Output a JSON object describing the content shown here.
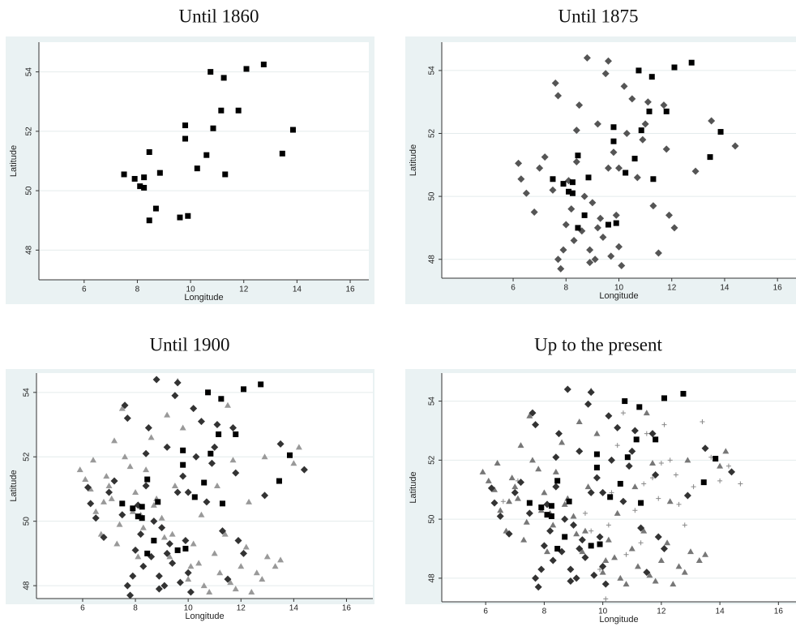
{
  "chart_data": [
    {
      "type": "scatter",
      "title": "Until 1860",
      "x_label": "Longitude",
      "y_label": "Latitude",
      "xlim": [
        4.3,
        16.7
      ],
      "ylim": [
        47.0,
        55.0
      ],
      "xticks": [
        6,
        8,
        10,
        12,
        14,
        16
      ],
      "yticks": [
        48,
        50,
        52,
        54
      ],
      "grid": true,
      "series": [
        {
          "color": "#000000",
          "marker": "square",
          "x": [
            7.5,
            7.9,
            8.25,
            8.1,
            8.25,
            8.45,
            8.85,
            8.7,
            8.45,
            9.6,
            9.9,
            9.8,
            9.8,
            10.25,
            10.6,
            10.85,
            10.75,
            11.25,
            11.15,
            11.3,
            12.1,
            12.75,
            11.8,
            13.85,
            13.45
          ],
          "values": [
            50.55,
            50.4,
            50.45,
            50.15,
            50.1,
            51.3,
            50.6,
            49.4,
            49.0,
            49.1,
            49.15,
            52.2,
            51.75,
            50.75,
            51.2,
            52.1,
            54.0,
            53.8,
            52.7,
            50.55,
            54.1,
            54.25,
            52.7,
            52.05,
            51.25
          ]
        }
      ]
    },
    {
      "type": "scatter",
      "title": "Until 1875",
      "x_label": "Longitude",
      "y_label": "Latitude",
      "xlim": [
        3.3,
        16.7
      ],
      "ylim": [
        47.4,
        54.9
      ],
      "xticks": [
        6,
        8,
        10,
        12,
        14,
        16
      ],
      "yticks": [
        48,
        50,
        52,
        54
      ],
      "grid": true,
      "series": [
        {
          "color": "#555555",
          "marker": "diamond",
          "x": [
            6.2,
            6.3,
            6.5,
            6.8,
            7.0,
            7.2,
            7.5,
            7.6,
            7.7,
            7.8,
            7.9,
            8.0,
            8.1,
            8.2,
            8.3,
            8.4,
            8.5,
            8.6,
            8.7,
            8.8,
            8.9,
            9.0,
            9.1,
            9.2,
            9.3,
            9.4,
            9.5,
            9.6,
            9.7,
            9.8,
            9.9,
            10.0,
            10.1,
            10.3,
            10.5,
            10.7,
            10.9,
            11.1,
            11.3,
            11.5,
            11.7,
            11.9,
            12.1,
            12.9,
            13.5,
            14.4,
            8.9,
            9.6,
            10.2,
            7.7,
            11.0,
            11.8,
            9.2,
            8.4,
            10.0
          ],
          "values": [
            51.05,
            50.55,
            50.1,
            49.5,
            50.9,
            51.25,
            50.2,
            53.6,
            48.0,
            47.7,
            48.3,
            49.1,
            50.5,
            49.6,
            48.6,
            51.1,
            52.9,
            48.9,
            50.0,
            54.4,
            48.3,
            49.8,
            48.0,
            52.3,
            49.3,
            48.7,
            53.9,
            50.9,
            48.1,
            51.4,
            49.4,
            48.4,
            47.8,
            52.0,
            53.1,
            50.6,
            51.8,
            53.0,
            49.7,
            48.2,
            52.9,
            49.4,
            49.0,
            50.8,
            52.4,
            51.6,
            47.9,
            54.3,
            53.5,
            53.2,
            52.3,
            51.5,
            49.0,
            52.1,
            50.9
          ]
        },
        {
          "color": "#000000",
          "marker": "square",
          "x": [
            7.5,
            7.9,
            8.25,
            8.1,
            8.25,
            8.45,
            8.85,
            8.7,
            8.45,
            9.6,
            9.9,
            9.8,
            9.8,
            10.25,
            10.6,
            10.85,
            10.75,
            11.25,
            11.15,
            11.3,
            12.1,
            12.75,
            11.8,
            13.85,
            13.45
          ],
          "values": [
            50.55,
            50.4,
            50.45,
            50.15,
            50.1,
            51.3,
            50.6,
            49.4,
            49.0,
            49.1,
            49.15,
            52.2,
            51.75,
            50.75,
            51.2,
            52.1,
            54.0,
            53.8,
            52.7,
            50.55,
            54.1,
            54.25,
            52.7,
            52.05,
            51.25
          ]
        }
      ]
    },
    {
      "type": "scatter",
      "title": "Until 1900",
      "x_label": "Longitude",
      "y_label": "Latitude",
      "xlim": [
        4.25,
        17.0
      ],
      "ylim": [
        47.6,
        54.6
      ],
      "xticks": [
        6,
        8,
        10,
        12,
        14,
        16
      ],
      "yticks": [
        48,
        50,
        52,
        54
      ],
      "grid": true,
      "series": [
        {
          "color": "#999999",
          "marker": "triangle",
          "x": [
            5.9,
            6.1,
            6.3,
            6.5,
            6.7,
            6.9,
            7.1,
            7.3,
            7.5,
            7.6,
            7.8,
            8.0,
            8.2,
            8.4,
            8.6,
            8.8,
            9.0,
            9.2,
            9.4,
            9.6,
            9.8,
            10.0,
            10.2,
            10.4,
            10.6,
            10.8,
            11.0,
            11.2,
            11.4,
            11.6,
            11.8,
            12.0,
            12.2,
            12.4,
            12.6,
            12.8,
            13.0,
            13.3,
            13.5,
            14.0,
            6.4,
            6.8,
            7.2,
            7.4,
            7.9,
            8.3,
            8.7,
            9.1,
            9.5,
            9.3,
            10.5,
            11.1,
            11.7,
            12.3,
            12.9,
            10.1,
            8.1,
            7.0,
            14.2,
            11.5
          ],
          "values": [
            51.6,
            51.3,
            51.0,
            50.3,
            49.6,
            51.4,
            50.7,
            49.3,
            53.5,
            52.0,
            51.7,
            50.9,
            50.2,
            51.6,
            52.6,
            50.7,
            50.1,
            53.3,
            49.6,
            54.35,
            52.9,
            48.2,
            49.3,
            48.7,
            48.0,
            47.8,
            49.0,
            48.4,
            49.6,
            48.1,
            47.9,
            48.6,
            49.2,
            47.8,
            48.4,
            48.2,
            48.9,
            48.6,
            48.8,
            51.8,
            51.9,
            50.6,
            52.5,
            49.9,
            50.3,
            49.8,
            50.5,
            49.5,
            51.1,
            48.9,
            50.2,
            51.1,
            51.9,
            50.6,
            52.0,
            48.6,
            48.9,
            51.1,
            52.3,
            53.6
          ]
        },
        {
          "color": "#333333",
          "marker": "diamond",
          "x": [
            6.2,
            6.3,
            6.5,
            6.8,
            7.0,
            7.2,
            7.5,
            7.6,
            7.7,
            7.8,
            7.9,
            8.0,
            8.1,
            8.2,
            8.3,
            8.4,
            8.5,
            8.6,
            8.7,
            8.8,
            8.9,
            9.0,
            9.1,
            9.2,
            9.3,
            9.4,
            9.5,
            9.6,
            9.7,
            9.8,
            9.9,
            10.0,
            10.1,
            10.3,
            10.5,
            10.7,
            10.9,
            11.1,
            11.3,
            11.5,
            11.7,
            11.9,
            12.1,
            12.9,
            13.5,
            14.4,
            8.9,
            9.6,
            10.2,
            7.7,
            11.0,
            11.8,
            9.2,
            8.4,
            10.0
          ],
          "values": [
            51.05,
            50.55,
            50.1,
            49.5,
            50.9,
            51.25,
            50.2,
            53.6,
            48.0,
            47.7,
            48.3,
            49.1,
            50.5,
            49.6,
            48.6,
            51.1,
            52.9,
            48.9,
            50.0,
            54.4,
            48.3,
            49.8,
            48.0,
            52.3,
            49.3,
            48.7,
            53.9,
            50.9,
            48.1,
            51.4,
            49.4,
            48.4,
            47.8,
            52.0,
            53.1,
            50.6,
            51.8,
            53.0,
            49.7,
            48.2,
            52.9,
            49.4,
            49.0,
            50.8,
            52.4,
            51.6,
            47.9,
            54.3,
            53.5,
            53.2,
            52.3,
            51.5,
            49.0,
            52.1,
            50.9
          ]
        },
        {
          "color": "#000000",
          "marker": "square",
          "x": [
            7.5,
            7.9,
            8.25,
            8.1,
            8.25,
            8.45,
            8.85,
            8.7,
            8.45,
            9.6,
            9.9,
            9.8,
            9.8,
            10.25,
            10.6,
            10.85,
            10.75,
            11.25,
            11.15,
            11.3,
            12.1,
            12.75,
            11.8,
            13.85,
            13.45
          ],
          "values": [
            50.55,
            50.4,
            50.45,
            50.15,
            50.1,
            51.3,
            50.6,
            49.4,
            49.0,
            49.1,
            49.15,
            52.2,
            51.75,
            50.75,
            51.2,
            52.1,
            54.0,
            53.8,
            52.7,
            50.55,
            54.1,
            54.25,
            52.7,
            52.05,
            51.25
          ]
        }
      ]
    },
    {
      "type": "scatter",
      "title": "Up to the present",
      "x_label": "Longitude",
      "y_label": "Latitude",
      "xlim": [
        4.5,
        16.6
      ],
      "ylim": [
        47.2,
        54.95
      ],
      "xticks": [
        6,
        8,
        10,
        12,
        14,
        16
      ],
      "yticks": [
        48,
        50,
        52,
        54
      ],
      "grid": true,
      "series": [
        {
          "color": "#888888",
          "marker": "plus",
          "x": [
            6.6,
            7.1,
            9.6,
            9.9,
            10.1,
            10.3,
            10.5,
            10.7,
            10.9,
            11.1,
            11.3,
            11.5,
            11.7,
            11.9,
            12.1,
            12.3,
            12.5,
            12.8,
            13.1,
            13.4,
            13.7,
            14.0,
            14.3,
            14.7,
            10.2,
            10.8,
            11.4,
            12.0,
            9.4,
            12.6
          ],
          "values": [
            50.6,
            51.3,
            49.6,
            48.3,
            47.3,
            50.9,
            52.5,
            53.6,
            51.8,
            50.3,
            49.2,
            52.9,
            51.4,
            50.7,
            53.2,
            52.0,
            51.5,
            49.8,
            51.1,
            53.3,
            52.1,
            51.3,
            51.8,
            51.2,
            49.8,
            48.8,
            51.2,
            51.9,
            50.2,
            50.5
          ]
        },
        {
          "color": "#777777",
          "marker": "triangle",
          "x": [
            5.9,
            6.1,
            6.3,
            6.5,
            6.7,
            6.9,
            7.1,
            7.3,
            7.5,
            7.6,
            7.8,
            8.0,
            8.2,
            8.4,
            8.6,
            8.8,
            9.0,
            9.2,
            9.4,
            9.6,
            9.8,
            10.0,
            10.2,
            10.4,
            10.6,
            10.8,
            11.0,
            11.2,
            11.4,
            11.6,
            11.8,
            12.0,
            12.2,
            12.4,
            12.6,
            12.8,
            13.0,
            13.3,
            13.5,
            14.0,
            6.4,
            6.8,
            7.2,
            7.4,
            7.9,
            8.3,
            8.7,
            9.1,
            9.5,
            9.3,
            10.5,
            11.1,
            11.7,
            12.3,
            12.9,
            10.1,
            8.1,
            7.0,
            14.2,
            11.5
          ],
          "values": [
            51.6,
            51.3,
            51.0,
            50.3,
            49.6,
            51.4,
            50.7,
            49.3,
            53.5,
            52.0,
            51.7,
            50.9,
            50.2,
            51.6,
            52.6,
            50.7,
            50.1,
            53.3,
            49.6,
            54.35,
            52.9,
            48.2,
            49.3,
            48.7,
            48.0,
            47.8,
            49.0,
            48.4,
            49.6,
            48.1,
            47.9,
            48.6,
            49.2,
            47.8,
            48.4,
            48.2,
            48.9,
            48.6,
            48.8,
            51.8,
            51.9,
            50.6,
            52.5,
            49.9,
            50.3,
            49.8,
            50.5,
            49.5,
            51.1,
            48.9,
            50.2,
            51.1,
            51.9,
            50.6,
            52.0,
            48.6,
            48.9,
            51.1,
            52.3,
            53.6
          ]
        },
        {
          "color": "#333333",
          "marker": "diamond",
          "x": [
            6.2,
            6.3,
            6.5,
            6.8,
            7.0,
            7.2,
            7.5,
            7.6,
            7.7,
            7.8,
            7.9,
            8.0,
            8.1,
            8.2,
            8.3,
            8.4,
            8.5,
            8.6,
            8.7,
            8.8,
            8.9,
            9.0,
            9.1,
            9.2,
            9.3,
            9.4,
            9.5,
            9.6,
            9.7,
            9.8,
            9.9,
            10.0,
            10.1,
            10.3,
            10.5,
            10.7,
            10.9,
            11.1,
            11.3,
            11.5,
            11.7,
            11.9,
            12.1,
            12.9,
            13.5,
            14.4,
            8.9,
            9.6,
            10.2,
            7.7,
            11.0,
            11.8,
            9.2,
            8.4,
            10.0
          ],
          "values": [
            51.05,
            50.55,
            50.1,
            49.5,
            50.9,
            51.25,
            50.2,
            53.6,
            48.0,
            47.7,
            48.3,
            49.1,
            50.5,
            49.6,
            48.6,
            51.1,
            52.9,
            48.9,
            50.0,
            54.4,
            48.3,
            49.8,
            48.0,
            52.3,
            49.3,
            48.7,
            53.9,
            50.9,
            48.1,
            51.4,
            49.4,
            48.4,
            47.8,
            52.0,
            53.1,
            50.6,
            51.8,
            53.0,
            49.7,
            48.2,
            52.9,
            49.4,
            49.0,
            50.8,
            52.4,
            51.6,
            47.9,
            54.3,
            53.5,
            53.2,
            52.3,
            51.5,
            49.0,
            52.1,
            50.9
          ]
        },
        {
          "color": "#000000",
          "marker": "square",
          "x": [
            7.5,
            7.9,
            8.25,
            8.1,
            8.25,
            8.45,
            8.85,
            8.7,
            8.45,
            9.6,
            9.9,
            9.8,
            9.8,
            10.25,
            10.6,
            10.85,
            10.75,
            11.25,
            11.15,
            11.3,
            12.1,
            12.75,
            11.8,
            13.85,
            13.45
          ],
          "values": [
            50.55,
            50.4,
            50.45,
            50.15,
            50.1,
            51.3,
            50.6,
            49.4,
            49.0,
            49.1,
            49.15,
            52.2,
            51.75,
            50.75,
            51.2,
            52.1,
            54.0,
            53.8,
            52.7,
            50.55,
            54.1,
            54.25,
            52.7,
            52.05,
            51.25
          ]
        }
      ]
    }
  ]
}
